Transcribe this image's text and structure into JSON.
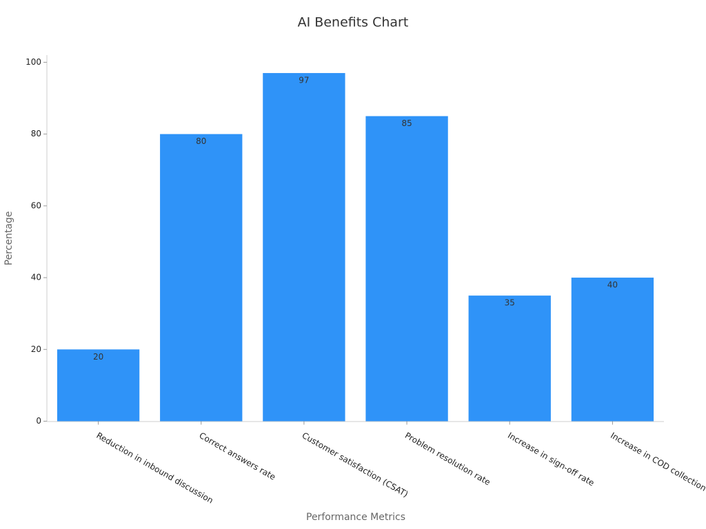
{
  "chart_data": {
    "type": "bar",
    "title": "AI Benefits Chart",
    "x_label": "Performance Metrics",
    "y_label": "Percentage",
    "categories": [
      "Reduction in inbound discussion",
      "Correct answers rate",
      "Customer satisfaction (CSAT)",
      "Problem resolution rate",
      "Increase in sign-off rate",
      "Increase in COD collection rate"
    ],
    "values": [
      20,
      80,
      97,
      85,
      35,
      40
    ],
    "color": "#2f93f8",
    "ylim": [
      0,
      102
    ],
    "yticks": [
      0,
      20,
      40,
      60,
      80,
      100
    ],
    "grid": false,
    "data_labels": true
  }
}
